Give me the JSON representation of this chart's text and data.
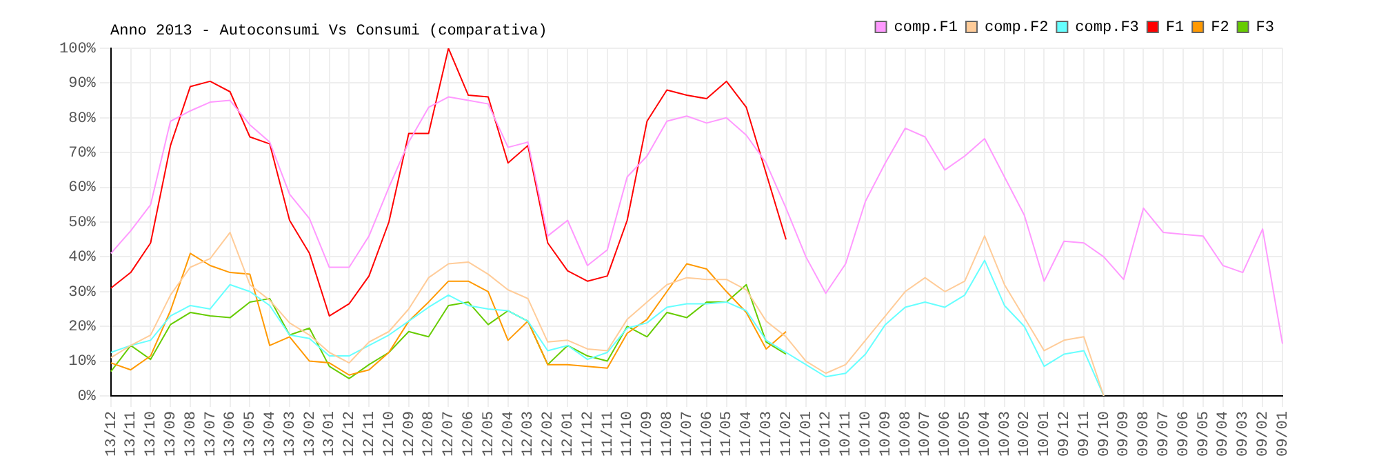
{
  "chart_data": {
    "type": "line",
    "title": "Anno 2013 - Autoconsumi Vs Consumi (comparativa)",
    "categories": [
      "13/12",
      "13/11",
      "13/10",
      "13/09",
      "13/08",
      "13/07",
      "13/06",
      "13/05",
      "13/04",
      "13/03",
      "13/02",
      "13/01",
      "12/12",
      "12/11",
      "12/10",
      "12/09",
      "12/08",
      "12/07",
      "12/06",
      "12/05",
      "12/04",
      "12/03",
      "12/02",
      "12/01",
      "11/12",
      "11/11",
      "11/10",
      "11/09",
      "11/08",
      "11/07",
      "11/06",
      "11/05",
      "11/04",
      "11/03",
      "11/02",
      "11/01",
      "10/12",
      "10/11",
      "10/10",
      "10/09",
      "10/08",
      "10/07",
      "10/06",
      "10/05",
      "10/04",
      "10/03",
      "10/02",
      "10/01",
      "09/12",
      "09/11",
      "09/10",
      "09/09",
      "09/08",
      "09/07",
      "09/06",
      "09/05",
      "09/04",
      "09/03",
      "09/02",
      "09/01"
    ],
    "series": [
      {
        "name": "comp.F1",
        "color": "#ff99ff",
        "values": [
          41,
          47.5,
          55,
          79,
          82,
          84.5,
          85,
          78,
          73,
          58,
          51,
          37,
          37,
          46,
          60,
          73,
          83,
          86,
          85,
          84,
          71.5,
          73,
          46,
          50.5,
          37.5,
          42,
          63,
          69,
          79,
          80.5,
          78.5,
          80,
          75,
          67,
          54,
          40,
          29.5,
          38,
          56,
          67,
          77,
          74.5,
          65,
          69,
          74,
          63,
          52,
          33,
          44.5,
          44,
          40,
          33.5,
          54,
          47,
          46.5,
          46,
          37.5,
          35.5,
          48,
          15
        ]
      },
      {
        "name": "comp.F2",
        "color": "#ffcc99",
        "values": [
          11,
          14.5,
          17.5,
          29,
          37,
          39.5,
          47,
          32,
          27.5,
          21,
          17.5,
          12.5,
          9.5,
          15.5,
          18.5,
          25,
          34,
          38,
          38.5,
          35,
          30.5,
          28,
          15.5,
          16,
          13.5,
          13,
          22,
          27,
          32,
          34,
          33.5,
          33.5,
          30.5,
          21.5,
          17,
          10,
          6.5,
          9,
          16,
          23,
          30,
          34,
          30,
          33,
          46,
          32,
          22.5,
          13,
          16,
          17,
          0,
          null,
          null,
          null,
          null,
          null,
          null,
          null,
          null,
          null
        ]
      },
      {
        "name": "comp.F3",
        "color": "#66ffff",
        "values": [
          12.5,
          14.5,
          16,
          23,
          26,
          25,
          32,
          30,
          26,
          17.5,
          16.5,
          11.5,
          11.5,
          14.5,
          17.5,
          21.5,
          25.5,
          29,
          26,
          25,
          24.5,
          21.5,
          13,
          14.5,
          10.5,
          12.5,
          19.5,
          21,
          25.5,
          26.5,
          26.5,
          27,
          24.5,
          16,
          12.5,
          9,
          5.5,
          6.5,
          12,
          20.5,
          25.5,
          27,
          25.5,
          29,
          39,
          26,
          20,
          8.5,
          12,
          13,
          0,
          null,
          null,
          null,
          null,
          null,
          null,
          null,
          null,
          null
        ]
      },
      {
        "name": "F1",
        "color": "#ff0000",
        "values": [
          31,
          35.5,
          44,
          72,
          89,
          90.5,
          87.5,
          74.5,
          72.5,
          50.5,
          41,
          23,
          26.5,
          34.5,
          50,
          75.5,
          75.5,
          100,
          86.5,
          86,
          67,
          72,
          44,
          36,
          33,
          34.5,
          50.5,
          79,
          88,
          86.5,
          85.5,
          90.5,
          83,
          64,
          45,
          null,
          null,
          null,
          null,
          null,
          null,
          null,
          null,
          null,
          null,
          null,
          null,
          null,
          null,
          null,
          null,
          null,
          null,
          null,
          null,
          null,
          null,
          null,
          null,
          null
        ]
      },
      {
        "name": "F2",
        "color": "#ff9900",
        "values": [
          9.5,
          7.5,
          11.5,
          24.5,
          41,
          37.5,
          35.5,
          35,
          14.5,
          17,
          10,
          9.5,
          6,
          7.5,
          12.5,
          21.5,
          27,
          33,
          33,
          30,
          16,
          21.5,
          9,
          9,
          8.5,
          8,
          18,
          22,
          30,
          38,
          36.5,
          30,
          24,
          13.5,
          18.5,
          null,
          null,
          null,
          null,
          null,
          null,
          null,
          null,
          null,
          null,
          null,
          null,
          null,
          null,
          null,
          null,
          null,
          null,
          null,
          null,
          null,
          null,
          null,
          null,
          null
        ]
      },
      {
        "name": "F3",
        "color": "#66cc00",
        "values": [
          7,
          14.5,
          10.5,
          20.5,
          24,
          23,
          22.5,
          27,
          28,
          17.5,
          19.5,
          8.5,
          5,
          9,
          12.5,
          18.5,
          17,
          26,
          27,
          20.5,
          24.5,
          21.5,
          9,
          14.5,
          11.5,
          10,
          20,
          17,
          24,
          22.5,
          27,
          27,
          32,
          15.5,
          12,
          null,
          null,
          null,
          null,
          null,
          null,
          null,
          null,
          null,
          null,
          null,
          null,
          null,
          null,
          null,
          null,
          null,
          null,
          null,
          null,
          null,
          null,
          null,
          null,
          null
        ]
      }
    ],
    "ylim": [
      0,
      100
    ],
    "yticks": [
      {
        "value": 0,
        "label": "0%"
      },
      {
        "value": 10,
        "label": "10%"
      },
      {
        "value": 20,
        "label": "20%"
      },
      {
        "value": 30,
        "label": "30%"
      },
      {
        "value": 40,
        "label": "40%"
      },
      {
        "value": 50,
        "label": "50%"
      },
      {
        "value": 60,
        "label": "60%"
      },
      {
        "value": 70,
        "label": "70%"
      },
      {
        "value": 80,
        "label": "80%"
      },
      {
        "value": 90,
        "label": "90%"
      },
      {
        "value": 100,
        "label": "100%"
      }
    ],
    "grid": true,
    "legend": "top right",
    "marker": "none",
    "line_style": "solid"
  }
}
